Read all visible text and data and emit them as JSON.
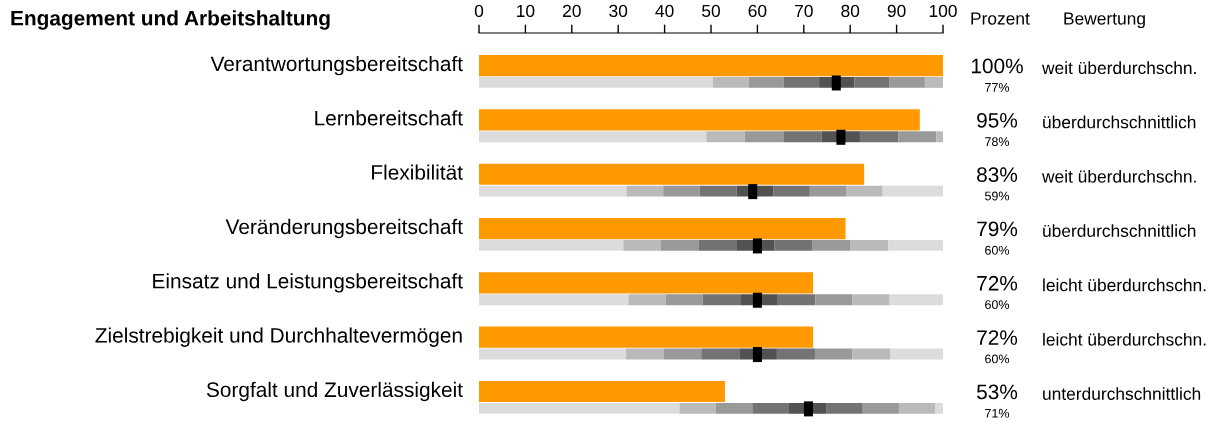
{
  "chart_data": {
    "type": "bar",
    "orientation": "horizontal",
    "title": "Engagement und Arbeitshaltung",
    "categories": [
      "Verantwortungsbereitschaft",
      "Lernbereitschaft",
      "Flexibilität",
      "Veränderungsbereitschaft",
      "Einsatz und Leistungsbereitschaft",
      "Zielstrebigkeit und Durchhaltevermögen",
      "Sorgfalt und Zuverlässigkeit"
    ],
    "xlim": [
      0,
      100
    ],
    "xticks": [
      0,
      10,
      20,
      30,
      40,
      50,
      60,
      70,
      80,
      90,
      100
    ],
    "series": [
      {
        "type": "bar",
        "color": "#ff9900",
        "values": [
          100,
          95,
          83,
          79,
          72,
          72,
          53
        ],
        "value_labels": [
          "100%",
          "95%",
          "83%",
          "79%",
          "72%",
          "72%",
          "53%"
        ]
      },
      {
        "type": "bar",
        "color": "#dcdcdc",
        "base": [
          0,
          0,
          0,
          0,
          0,
          0,
          0
        ],
        "values": [
          50.4,
          49.0,
          31.8,
          31.1,
          32.2,
          31.7,
          43.2
        ]
      },
      {
        "type": "bar",
        "color": "#bababa",
        "base": [
          50.4,
          49.0,
          31.8,
          31.1,
          32.2,
          31.7,
          43.2
        ],
        "values": [
          7.7,
          8.3,
          7.9,
          8.1,
          8.0,
          8.1,
          7.8
        ]
      },
      {
        "type": "bar",
        "color": "#999999",
        "base": [
          58.1,
          57.3,
          39.7,
          39.2,
          40.2,
          39.8,
          51.0
        ],
        "values": [
          7.6,
          8.3,
          7.9,
          8.2,
          8.0,
          8.1,
          7.9
        ]
      },
      {
        "type": "bar",
        "color": "#737373",
        "base": [
          65.7,
          65.6,
          47.6,
          47.4,
          48.2,
          47.9,
          58.9
        ],
        "values": [
          7.6,
          8.2,
          7.9,
          8.2,
          8.1,
          8.2,
          7.9
        ]
      },
      {
        "type": "bar",
        "color": "#525252",
        "base": [
          73.3,
          73.8,
          55.5,
          55.6,
          56.3,
          56.1,
          66.8
        ],
        "values": [
          7.6,
          8.3,
          7.9,
          8.1,
          8.1,
          8.1,
          8.0
        ]
      },
      {
        "type": "bar",
        "color": "#737373",
        "base": [
          80.9,
          82.1,
          63.4,
          63.7,
          64.4,
          64.2,
          74.8
        ],
        "values": [
          7.6,
          8.3,
          7.9,
          8.2,
          8.1,
          8.2,
          7.9
        ]
      },
      {
        "type": "bar",
        "color": "#999999",
        "base": [
          88.5,
          90.4,
          71.3,
          71.9,
          72.5,
          72.4,
          82.7
        ],
        "values": [
          7.6,
          8.2,
          7.8,
          8.2,
          8.0,
          8.1,
          7.8
        ]
      },
      {
        "type": "bar",
        "color": "#bababa",
        "base": [
          96.1,
          98.6,
          79.1,
          80.1,
          80.5,
          80.5,
          90.5
        ],
        "values": [
          3.9,
          1.4,
          7.9,
          8.1,
          8.0,
          8.2,
          7.9
        ]
      },
      {
        "type": "bar",
        "color": "#dcdcdc",
        "base": [
          null,
          null,
          87.0,
          88.2,
          88.5,
          88.7,
          98.4
        ],
        "values": [
          null,
          null,
          13.0,
          11.8,
          11.5,
          11.3,
          1.6
        ]
      },
      {
        "type": "scatter",
        "color": "#000000",
        "values": [
          77,
          78,
          59,
          60,
          60,
          60,
          71
        ],
        "value_labels": [
          "77%",
          "78%",
          "59%",
          "60%",
          "60%",
          "60%",
          "71%"
        ]
      }
    ],
    "annotations": [
      "Prozent",
      "Bewertung",
      "weit überdurchschn.",
      "überdurchschnittlich",
      "weit überdurchschn.",
      "überdurchschnittlich",
      "leicht überdurchschn.",
      "leicht überdurchschn.",
      "unterdurchschnittlich"
    ]
  }
}
